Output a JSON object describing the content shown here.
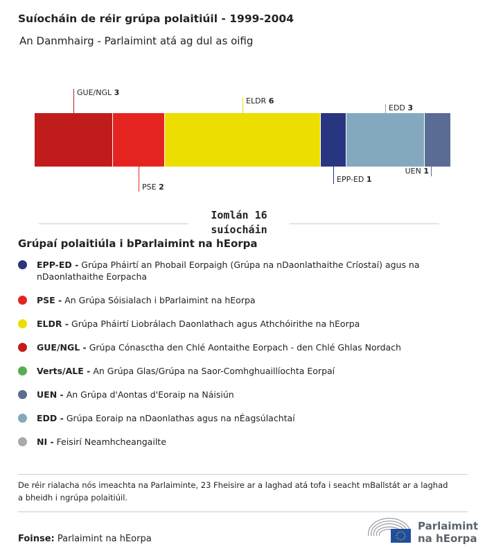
{
  "title": "Suíocháin de réir grúpa polaitiúil - 1999-2004",
  "subtitle": "An Danmhairg - Parlaimint atá ag dul as oifig",
  "chart_data": {
    "type": "bar",
    "orientation": "stacked-horizontal",
    "segments": [
      {
        "name": "GUE/NGL",
        "value": 3,
        "color": "#c01c1c"
      },
      {
        "name": "PSE",
        "value": 2,
        "color": "#e52421"
      },
      {
        "name": "ELDR",
        "value": 6,
        "color": "#ecde00"
      },
      {
        "name": "EPP-ED",
        "value": 1,
        "color": "#283580"
      },
      {
        "name": "EDD",
        "value": 3,
        "color": "#84a9bf"
      },
      {
        "name": "UEN",
        "value": 1,
        "color": "#5a6c94"
      }
    ],
    "total": 16,
    "total_label": "Iomlán 16",
    "total_unit": "suíocháin"
  },
  "legend": {
    "heading": "Grúpaí polaitiúla i bParlaimint na hEorpa",
    "items": [
      {
        "abbr": "EPP-ED -",
        "desc": "Grúpa Pháirtí an Phobail Eorpaigh (Grúpa na nDaonlathaithe Críostaí) agus na nDaonlathaithe Eorpacha",
        "color": "#283580"
      },
      {
        "abbr": "PSE -",
        "desc": "An Grúpa Sóisialach i bParlaimint na hEorpa",
        "color": "#e52421"
      },
      {
        "abbr": "ELDR -",
        "desc": "Grúpa Pháirtí Liobrálach Daonlathach agus Athchóirithe na hEorpa",
        "color": "#ecde00"
      },
      {
        "abbr": "GUE/NGL -",
        "desc": "Grúpa Cónasctha den Chlé Aontaithe Eorpach - den Chlé Ghlas Nordach",
        "color": "#c01c1c"
      },
      {
        "abbr": "Verts/ALE -",
        "desc": "An Grúpa Glas/Grúpa na Saor-Comhghuaillíochta Eorpaí",
        "color": "#57ad53"
      },
      {
        "abbr": "UEN -",
        "desc": "An Grúpa d'Aontas d'Eoraip na Náisiún",
        "color": "#5a6c94"
      },
      {
        "abbr": "EDD -",
        "desc": "Grúpa Eoraip na nDaonlathas agus na nÉagsúlachtaí",
        "color": "#84a9bf"
      },
      {
        "abbr": "NI -",
        "desc": "Feisirí Neamhcheangailte",
        "color": "#aaaaaa"
      }
    ]
  },
  "note": "De réir rialacha nós imeachta na Parlaiminte, 23 Fheisire ar a laghad atá tofa i seacht mBallstát ar a laghad a bheidh i ngrúpa polaitiúil.",
  "source": {
    "label": "Foinse:",
    "value": "Parlaimint na hEorpa"
  },
  "logo": {
    "line1": "Parlaimint",
    "line2": "na hEorpa"
  }
}
